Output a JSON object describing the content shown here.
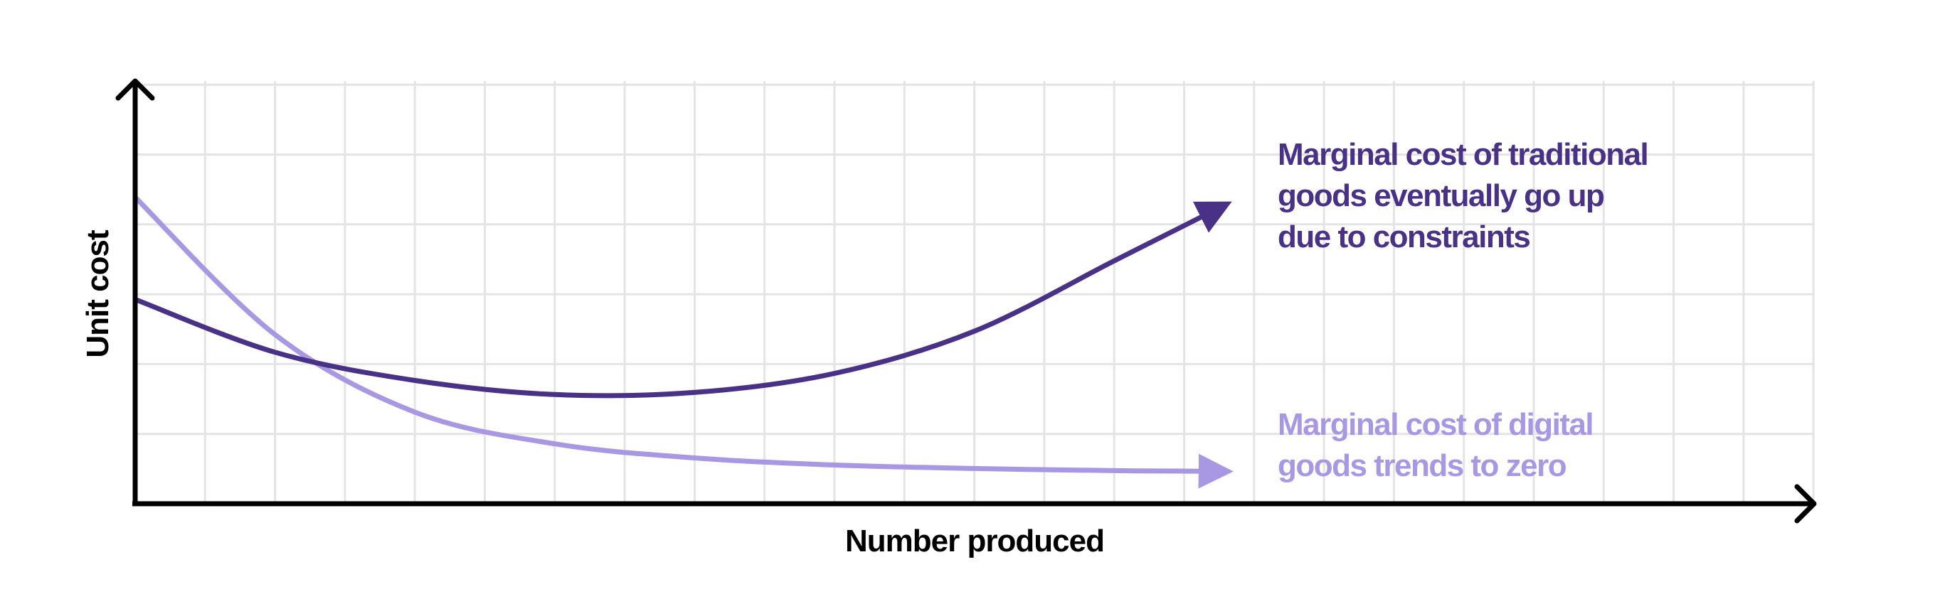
{
  "chart_data": {
    "type": "line",
    "title": "",
    "xlabel": "Number produced",
    "ylabel": "Unit cost",
    "xlim": [
      0,
      24
    ],
    "ylim": [
      0,
      6
    ],
    "grid": true,
    "series": [
      {
        "name": "Marginal cost of traditional goods eventually go up due to constraints",
        "label_lines": [
          "Marginal cost of traditional goods eventually go up",
          "due to constraints"
        ],
        "color": "#483186",
        "x": [
          0,
          2,
          4,
          6,
          8,
          10,
          12,
          14,
          15.5
        ],
        "y": [
          2.9,
          2.15,
          1.75,
          1.55,
          1.58,
          1.85,
          2.45,
          3.45,
          4.2
        ]
      },
      {
        "name": "Marginal cost of digital goods trends to zero",
        "label_lines": [
          "Marginal cost of digital",
          "goods trends to zero"
        ],
        "color": "#A898E4",
        "x": [
          0,
          2,
          4,
          6,
          8,
          10,
          12,
          14,
          15.5
        ],
        "y": [
          4.35,
          2.4,
          1.3,
          0.85,
          0.65,
          0.55,
          0.5,
          0.47,
          0.46
        ]
      }
    ]
  },
  "colors": {
    "axis": "#000000",
    "grid": "#e4e4e4"
  }
}
